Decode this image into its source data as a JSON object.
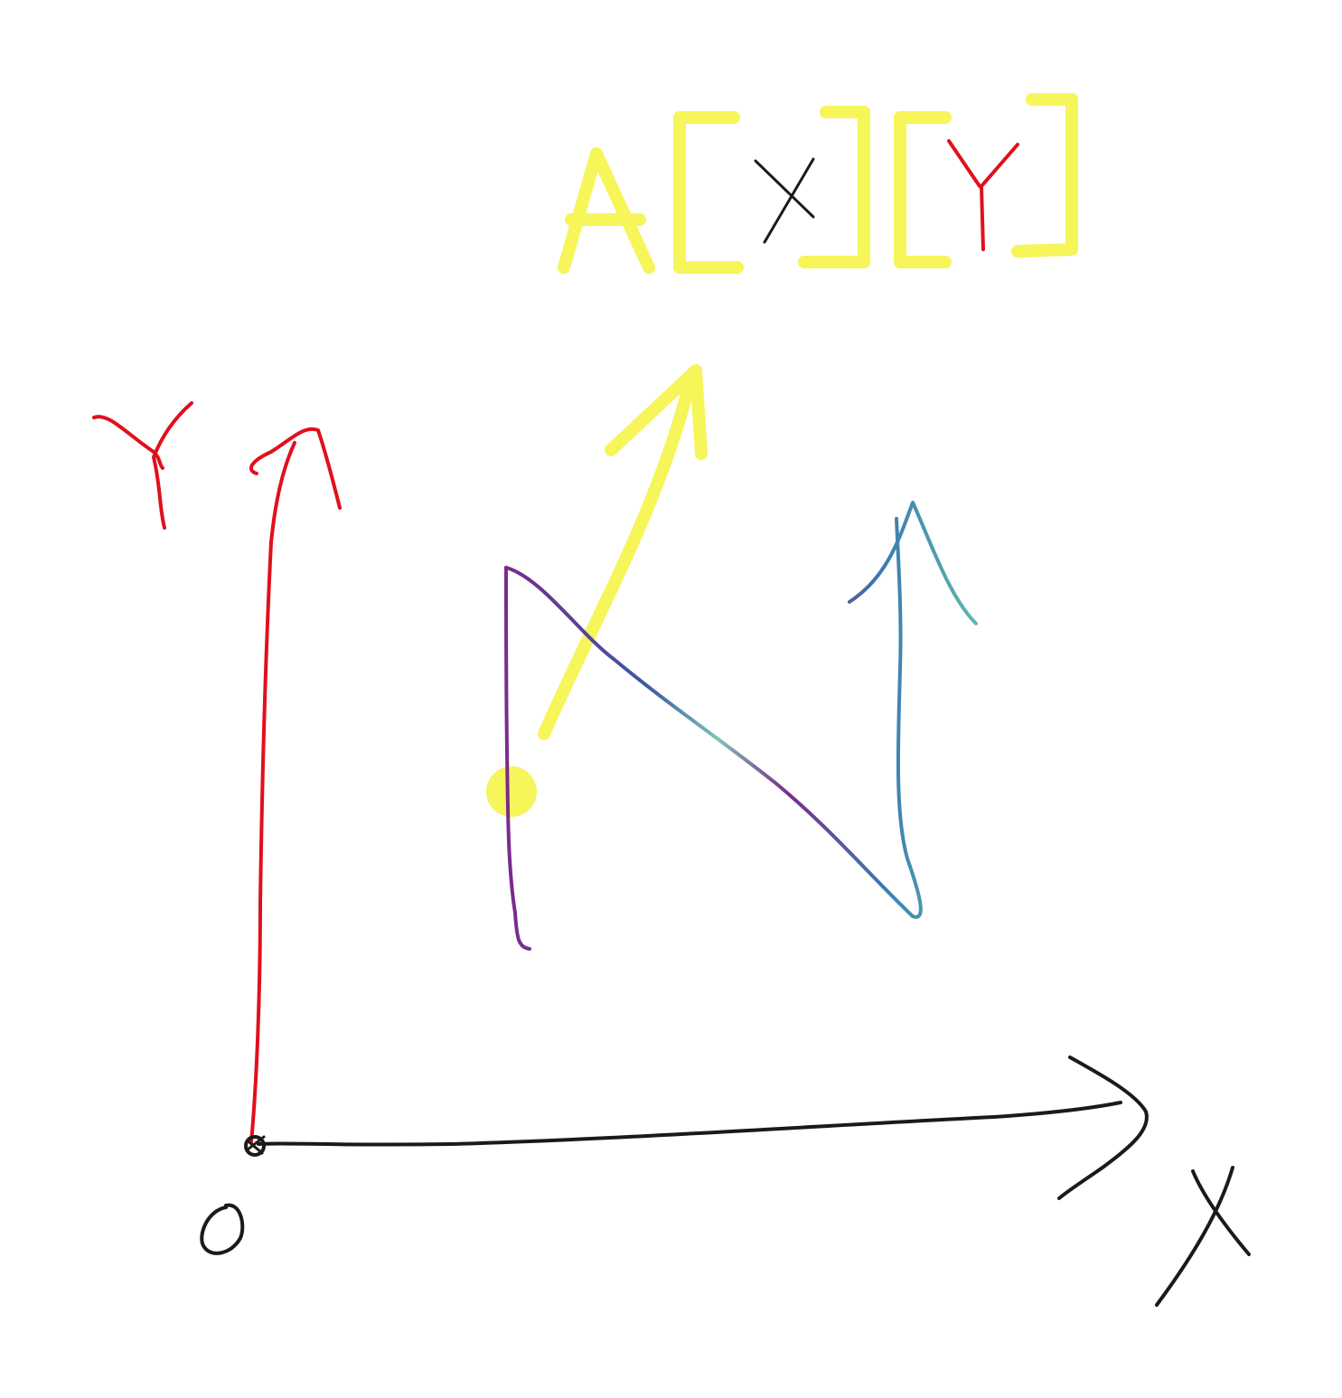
{
  "title": {
    "array": "A",
    "open_bracket_1": "[",
    "index_1": "X",
    "close_bracket_1": "]",
    "open_bracket_2": "[",
    "index_2": "Y",
    "close_bracket_2": "]"
  },
  "axes": {
    "x_label": "X",
    "y_label": "Y",
    "origin_label": "O"
  },
  "colors": {
    "background": "#ffffff",
    "y_axis": "#e0101c",
    "x_axis": "#1a1a1a",
    "highlight": "#f6f55a",
    "path_purple": "#7b2a8c",
    "path_blue": "#3a5aa0",
    "path_teal": "#5fb8b0"
  }
}
